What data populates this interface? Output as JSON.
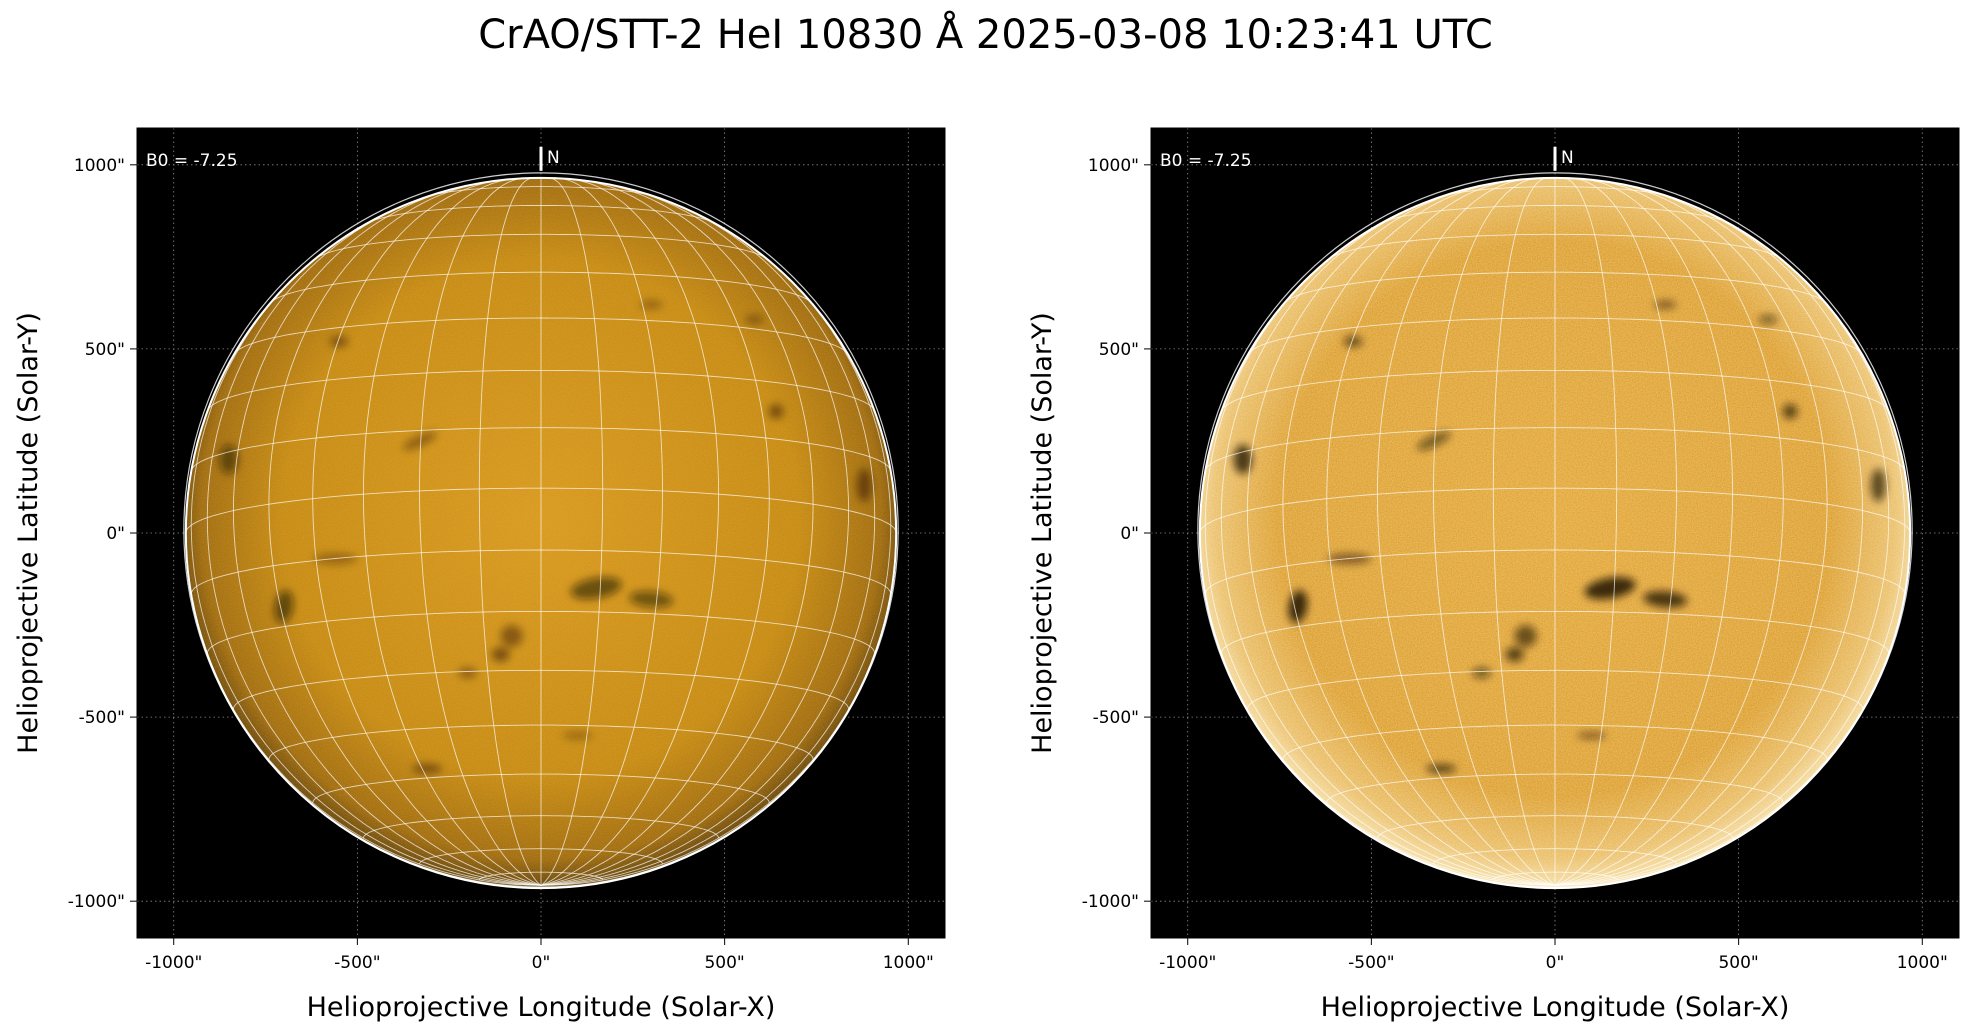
{
  "figure": {
    "title": "CrAO/STT-2 HeI 10830 Å 2025-03-08 10:23:41 UTC"
  },
  "colors": {
    "background": "#000000",
    "disk_left": "#c98a0e",
    "disk_right": "#d9961a",
    "grid": "#ffffff",
    "dark_feature": "#1a0d00"
  },
  "axes": {
    "xlabel": "Helioprojective Longitude (Solar-X)",
    "ylabel": "Helioprojective Latitude (Solar-Y)",
    "x_ticks": [
      "-1000\"",
      "-500\"",
      "0\"",
      "500\"",
      "1000\""
    ],
    "y_ticks": [
      "1000\"",
      "500\"",
      "0\"",
      "-500\"",
      "-1000\""
    ]
  },
  "panels": [
    {
      "b0_label": "B0 = -7.25",
      "north_label": "N"
    },
    {
      "b0_label": "B0 = -7.25",
      "north_label": "N"
    }
  ]
}
